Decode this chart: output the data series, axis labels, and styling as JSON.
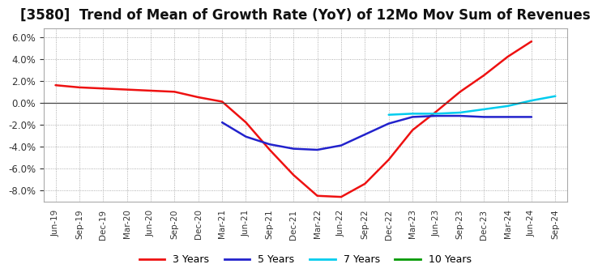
{
  "title": "[3580]  Trend of Mean of Growth Rate (YoY) of 12Mo Mov Sum of Revenues",
  "title_fontsize": 12,
  "background_color": "#ffffff",
  "plot_bg_color": "#ffffff",
  "ylim": [
    -0.09,
    0.068
  ],
  "yticks": [
    -0.08,
    -0.06,
    -0.04,
    -0.02,
    0.0,
    0.02,
    0.04,
    0.06
  ],
  "xtick_labels": [
    "Jun-19",
    "Sep-19",
    "Dec-19",
    "Mar-20",
    "Jun-20",
    "Sep-20",
    "Dec-20",
    "Mar-21",
    "Jun-21",
    "Sep-21",
    "Dec-21",
    "Mar-22",
    "Jun-22",
    "Sep-22",
    "Dec-22",
    "Mar-23",
    "Jun-23",
    "Sep-23",
    "Dec-23",
    "Mar-24",
    "Jun-24",
    "Sep-24"
  ],
  "series": {
    "3 Years": {
      "color": "#ee1111",
      "linewidth": 1.8,
      "x": [
        0,
        1,
        2,
        3,
        4,
        5,
        6,
        7,
        8,
        9,
        10,
        11,
        12,
        13,
        14,
        15,
        16,
        17,
        18,
        19,
        20
      ],
      "y": [
        0.016,
        0.014,
        0.013,
        0.012,
        0.011,
        0.01,
        0.005,
        0.001,
        -0.018,
        -0.043,
        -0.066,
        -0.085,
        -0.086,
        -0.074,
        -0.052,
        -0.025,
        -0.008,
        0.01,
        0.025,
        0.042,
        0.056
      ]
    },
    "5 Years": {
      "color": "#2222cc",
      "linewidth": 1.8,
      "x": [
        7,
        8,
        9,
        10,
        11,
        12,
        13,
        14,
        15,
        16,
        17,
        18,
        19,
        20
      ],
      "y": [
        -0.018,
        -0.031,
        -0.038,
        -0.042,
        -0.043,
        -0.039,
        -0.029,
        -0.019,
        -0.013,
        -0.012,
        -0.012,
        -0.013,
        -0.013,
        -0.013
      ]
    },
    "7 Years": {
      "color": "#00ccee",
      "linewidth": 1.8,
      "x": [
        14,
        15,
        16,
        17,
        18,
        19,
        20,
        21
      ],
      "y": [
        -0.011,
        -0.01,
        -0.01,
        -0.009,
        -0.006,
        -0.003,
        0.002,
        0.006
      ]
    },
    "10 Years": {
      "color": "#009900",
      "linewidth": 1.8,
      "x": [],
      "y": []
    }
  },
  "legend_labels": [
    "3 Years",
    "5 Years",
    "7 Years",
    "10 Years"
  ],
  "legend_colors": [
    "#ee1111",
    "#2222cc",
    "#00ccee",
    "#009900"
  ]
}
